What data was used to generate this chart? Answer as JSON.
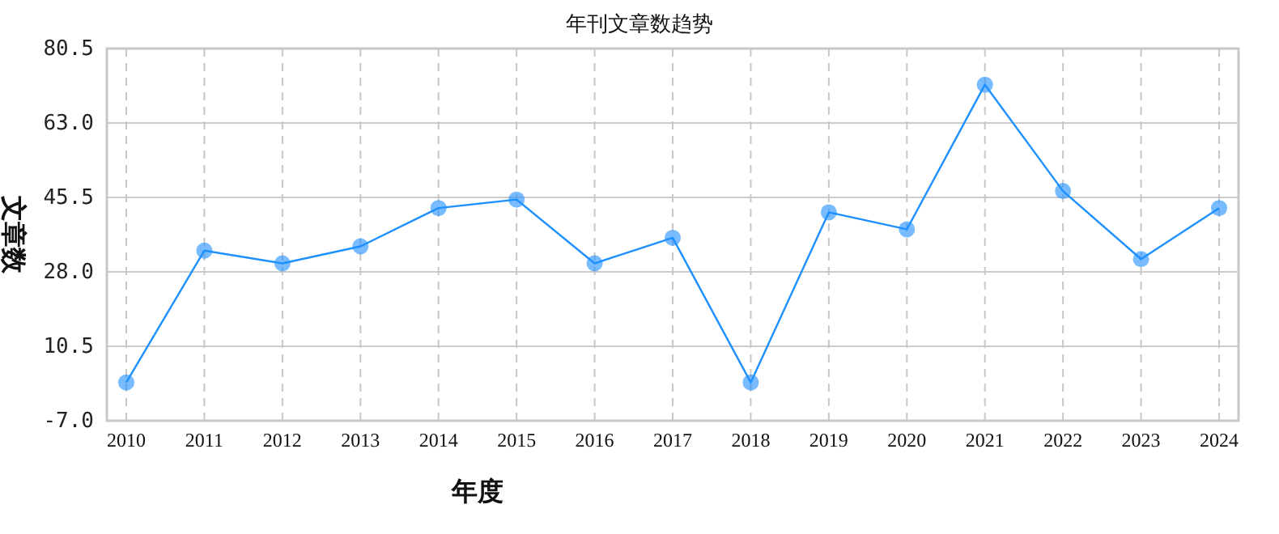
{
  "chart_data": {
    "type": "line",
    "title": "年刊文章数趋势",
    "xlabel": "年度",
    "ylabel": "文章数",
    "categories": [
      "2010",
      "2011",
      "2012",
      "2013",
      "2014",
      "2015",
      "2016",
      "2017",
      "2018",
      "2019",
      "2020",
      "2021",
      "2022",
      "2023",
      "2024"
    ],
    "series": [
      {
        "color": "#1e90ff",
        "values": [
          2,
          33,
          30,
          34,
          43,
          45,
          30,
          36,
          2,
          42,
          38,
          72,
          47,
          31,
          43
        ]
      }
    ],
    "ylim": [
      -7,
      80.5
    ],
    "yticks": [
      {
        "value": -7,
        "label": "-7.0"
      },
      10.5,
      {
        "value": 28,
        "label": "28.0"
      },
      45.5,
      {
        "value": 63,
        "label": "63.0"
      },
      80.5
    ],
    "grid": true,
    "marker": "circle",
    "line_style": "solid"
  }
}
